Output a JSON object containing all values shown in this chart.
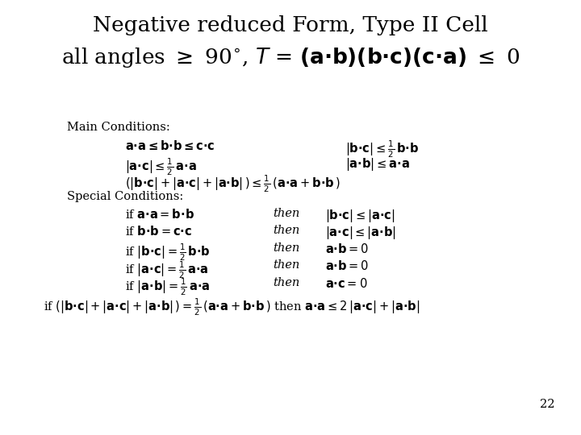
{
  "bg_color": "#ffffff",
  "text_color": "#000000",
  "fig_width": 7.2,
  "fig_height": 5.4,
  "dpi": 100,
  "page_number": "22"
}
